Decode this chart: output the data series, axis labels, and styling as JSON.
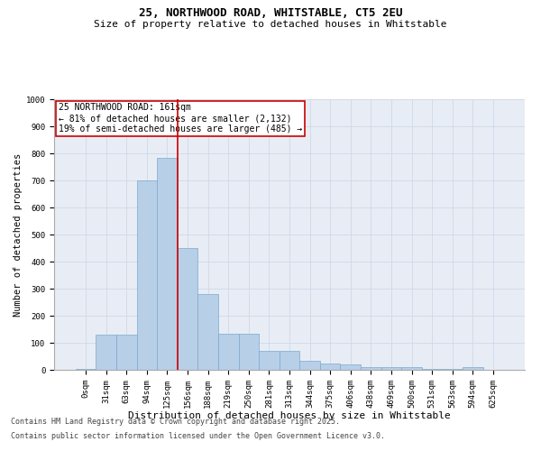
{
  "title_line1": "25, NORTHWOOD ROAD, WHITSTABLE, CT5 2EU",
  "title_line2": "Size of property relative to detached houses in Whitstable",
  "xlabel": "Distribution of detached houses by size in Whitstable",
  "ylabel": "Number of detached properties",
  "bar_color": "#b8cfe8",
  "bar_edge_color": "#7aaad0",
  "categories": [
    "0sqm",
    "31sqm",
    "63sqm",
    "94sqm",
    "125sqm",
    "156sqm",
    "188sqm",
    "219sqm",
    "250sqm",
    "281sqm",
    "313sqm",
    "344sqm",
    "375sqm",
    "406sqm",
    "438sqm",
    "469sqm",
    "500sqm",
    "531sqm",
    "563sqm",
    "594sqm",
    "625sqm"
  ],
  "values": [
    5,
    130,
    130,
    700,
    785,
    450,
    280,
    135,
    135,
    70,
    70,
    35,
    25,
    20,
    10,
    10,
    10,
    5,
    5,
    10,
    0
  ],
  "vline_x": 4.5,
  "vline_color": "#cc0000",
  "annotation_line1": "25 NORTHWOOD ROAD: 161sqm",
  "annotation_line2": "← 81% of detached houses are smaller (2,132)",
  "annotation_line3": "19% of semi-detached houses are larger (485) →",
  "annotation_box_color": "#ffffff",
  "annotation_box_edge": "#cc0000",
  "ylim": [
    0,
    1000
  ],
  "yticks": [
    0,
    100,
    200,
    300,
    400,
    500,
    600,
    700,
    800,
    900,
    1000
  ],
  "grid_color": "#ced8e8",
  "bg_color": "#e8edf5",
  "footnote_line1": "Contains HM Land Registry data © Crown copyright and database right 2025.",
  "footnote_line2": "Contains public sector information licensed under the Open Government Licence v3.0.",
  "title_fontsize": 9,
  "subtitle_fontsize": 8,
  "tick_fontsize": 6.5,
  "xlabel_fontsize": 8,
  "ylabel_fontsize": 7.5,
  "annotation_fontsize": 7,
  "footnote_fontsize": 6
}
